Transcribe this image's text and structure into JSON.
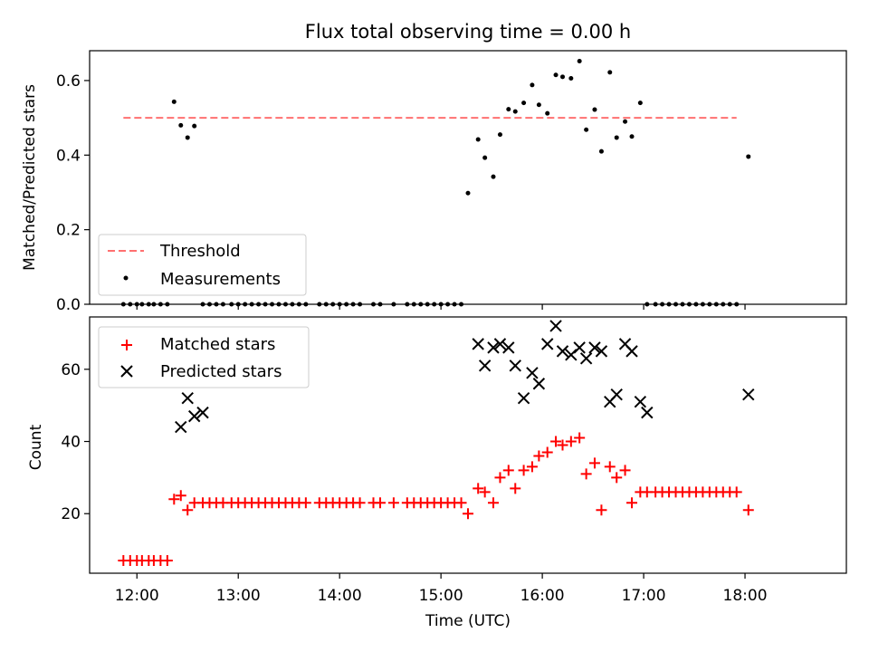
{
  "chart_data": [
    {
      "type": "scatter",
      "title": "Flux total observing time = 0.00 h",
      "ylabel": "Matched/Predicted stars",
      "xlabel": "",
      "xlim": [
        "11:32",
        "19:00"
      ],
      "ylim": [
        0,
        0.68
      ],
      "yticks": [
        0.0,
        0.2,
        0.4,
        0.6
      ],
      "ytick_labels": [
        "0.0",
        "0.2",
        "0.4",
        "0.6"
      ],
      "xticks": [
        "12:00",
        "13:00",
        "14:00",
        "15:00",
        "16:00",
        "17:00",
        "18:00"
      ],
      "show_xtick_labels": false,
      "legend": {
        "position": "lower-left",
        "entries": [
          "Threshold",
          "Measurements"
        ]
      },
      "threshold": {
        "name": "Threshold",
        "value": 0.5,
        "x_start": "11:52",
        "x_end": "17:55",
        "color": "#ff7070"
      },
      "series": [
        {
          "name": "Measurements",
          "color": "#000000",
          "marker": "dot",
          "x": [
            "11:52",
            "11:56",
            "12:00",
            "12:03",
            "12:07",
            "12:10",
            "12:14",
            "12:18",
            "12:22",
            "12:26",
            "12:30",
            "12:34",
            "12:39",
            "12:43",
            "12:47",
            "12:51",
            "12:56",
            "13:00",
            "13:04",
            "13:08",
            "13:12",
            "13:16",
            "13:20",
            "13:24",
            "13:28",
            "13:32",
            "13:36",
            "13:40",
            "13:48",
            "13:52",
            "13:56",
            "14:00",
            "14:04",
            "14:08",
            "14:12",
            "14:20",
            "14:24",
            "14:32",
            "14:40",
            "14:44",
            "14:48",
            "14:52",
            "14:56",
            "15:00",
            "15:04",
            "15:08",
            "15:12",
            "15:16",
            "15:22",
            "15:26",
            "15:31",
            "15:35",
            "15:40",
            "15:44",
            "15:49",
            "15:54",
            "15:58",
            "16:03",
            "16:08",
            "16:12",
            "16:17",
            "16:22",
            "16:26",
            "16:31",
            "16:35",
            "16:40",
            "16:44",
            "16:49",
            "16:53",
            "16:58",
            "17:02",
            "17:07",
            "17:11",
            "17:15",
            "17:19",
            "17:23",
            "17:27",
            "17:31",
            "17:35",
            "17:39",
            "17:43",
            "17:47",
            "17:51",
            "17:55",
            "18:02"
          ],
          "y": [
            0,
            0,
            0,
            0,
            0,
            0,
            0,
            0,
            0.543,
            0.48,
            0.447,
            0.478,
            0,
            0,
            0,
            0,
            0,
            0,
            0,
            0,
            0,
            0,
            0,
            0,
            0,
            0,
            0,
            0,
            0,
            0,
            0,
            0,
            0,
            0,
            0,
            0,
            0,
            0,
            0,
            0,
            0,
            0,
            0,
            0,
            0,
            0,
            0,
            0.298,
            0.442,
            0.393,
            0.342,
            0.455,
            0.523,
            0.517,
            0.54,
            0.588,
            0.535,
            0.512,
            0.615,
            0.61,
            0.606,
            0.652,
            0.468,
            0.522,
            0.41,
            0.622,
            0.447,
            0.49,
            0.45,
            0.54,
            0,
            0,
            0,
            0,
            0,
            0,
            0,
            0,
            0,
            0,
            0,
            0,
            0,
            0,
            0.396
          ]
        }
      ]
    },
    {
      "type": "scatter",
      "title": "",
      "ylabel": "Count",
      "xlabel": "Time (UTC)",
      "xlim": [
        "11:32",
        "19:00"
      ],
      "ylim": [
        3.5,
        74.5
      ],
      "yticks": [
        20,
        40,
        60
      ],
      "ytick_labels": [
        "20",
        "40",
        "60"
      ],
      "xticks": [
        "12:00",
        "13:00",
        "14:00",
        "15:00",
        "16:00",
        "17:00",
        "18:00"
      ],
      "xtick_labels": [
        "12:00",
        "13:00",
        "14:00",
        "15:00",
        "16:00",
        "17:00",
        "18:00"
      ],
      "legend": {
        "position": "upper-left",
        "entries": [
          "Matched stars",
          "Predicted stars"
        ]
      },
      "series": [
        {
          "name": "Matched stars",
          "color": "#ff0000",
          "marker": "plus",
          "x": [
            "11:52",
            "11:56",
            "12:00",
            "12:03",
            "12:07",
            "12:10",
            "12:14",
            "12:18",
            "12:22",
            "12:26",
            "12:30",
            "12:34",
            "12:39",
            "12:43",
            "12:47",
            "12:51",
            "12:56",
            "13:00",
            "13:04",
            "13:08",
            "13:12",
            "13:16",
            "13:20",
            "13:24",
            "13:28",
            "13:32",
            "13:36",
            "13:40",
            "13:48",
            "13:52",
            "13:56",
            "14:00",
            "14:04",
            "14:08",
            "14:12",
            "14:20",
            "14:24",
            "14:32",
            "14:40",
            "14:44",
            "14:48",
            "14:52",
            "14:56",
            "15:00",
            "15:04",
            "15:08",
            "15:12",
            "15:16",
            "15:22",
            "15:26",
            "15:31",
            "15:35",
            "15:40",
            "15:44",
            "15:49",
            "15:54",
            "15:58",
            "16:03",
            "16:08",
            "16:12",
            "16:17",
            "16:22",
            "16:26",
            "16:31",
            "16:35",
            "16:40",
            "16:44",
            "16:49",
            "16:53",
            "16:58",
            "17:02",
            "17:07",
            "17:11",
            "17:15",
            "17:19",
            "17:23",
            "17:27",
            "17:31",
            "17:35",
            "17:39",
            "17:43",
            "17:47",
            "17:51",
            "17:55",
            "18:02"
          ],
          "y": [
            7,
            7,
            7,
            7,
            7,
            7,
            7,
            7,
            24,
            25,
            21,
            23,
            23,
            23,
            23,
            23,
            23,
            23,
            23,
            23,
            23,
            23,
            23,
            23,
            23,
            23,
            23,
            23,
            23,
            23,
            23,
            23,
            23,
            23,
            23,
            23,
            23,
            23,
            23,
            23,
            23,
            23,
            23,
            23,
            23,
            23,
            23,
            20,
            27,
            26,
            23,
            30,
            32,
            27,
            32,
            33,
            36,
            37,
            40,
            39,
            40,
            41,
            31,
            34,
            21,
            33,
            30,
            32,
            23,
            26,
            26,
            26,
            26,
            26,
            26,
            26,
            26,
            26,
            26,
            26,
            26,
            26,
            26,
            26,
            21
          ]
        },
        {
          "name": "Predicted stars",
          "color": "#000000",
          "marker": "x",
          "x": [
            "12:26",
            "12:30",
            "12:34",
            "12:39",
            "15:22",
            "15:26",
            "15:31",
            "15:35",
            "15:40",
            "15:44",
            "15:49",
            "15:54",
            "15:58",
            "16:03",
            "16:08",
            "16:12",
            "16:17",
            "16:22",
            "16:26",
            "16:31",
            "16:35",
            "16:40",
            "16:44",
            "16:49",
            "16:53",
            "16:58",
            "17:02",
            "17:07",
            "17:11",
            "18:02"
          ],
          "y": [
            44,
            52,
            47,
            48,
            67,
            61,
            66,
            67,
            66,
            61,
            52,
            59,
            56,
            67,
            72,
            65,
            64,
            66,
            63,
            66,
            65,
            51,
            53,
            67,
            65,
            51,
            48,
            null,
            null,
            53
          ]
        }
      ]
    }
  ]
}
